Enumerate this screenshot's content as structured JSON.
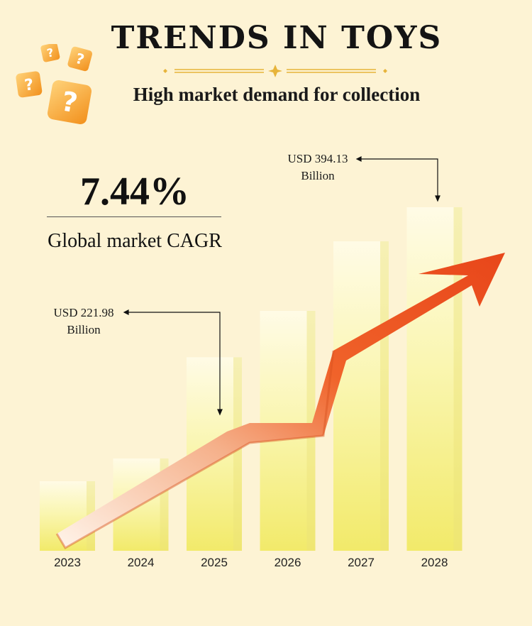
{
  "title": "TRENDS IN TOYS",
  "subtitle": "High market demand for collection",
  "cagr": {
    "value": "7.44%",
    "label": "Global market CAGR"
  },
  "callouts": [
    {
      "line1": "USD 221.98",
      "line2": "Billion"
    },
    {
      "line1": "USD 394.13",
      "line2": "Billion"
    }
  ],
  "colors": {
    "background": "#fdf3d4",
    "bar": "#f7f08a",
    "arrow": "#f0632a",
    "dice": "#f9a531"
  },
  "icons": [
    "question-dice-icon",
    "sparkle-icon"
  ],
  "chart_data": {
    "type": "bar",
    "categories": [
      "2023",
      "2024",
      "2025",
      "2026",
      "2027",
      "2028"
    ],
    "values": [
      null,
      null,
      221.98,
      null,
      null,
      394.13
    ],
    "annotations": [
      {
        "category": "2025",
        "text": "USD 221.98 Billion"
      },
      {
        "category": "2028",
        "text": "USD 394.13 Billion"
      }
    ],
    "trend": "rising arrow",
    "grid": false,
    "legend": "none"
  }
}
